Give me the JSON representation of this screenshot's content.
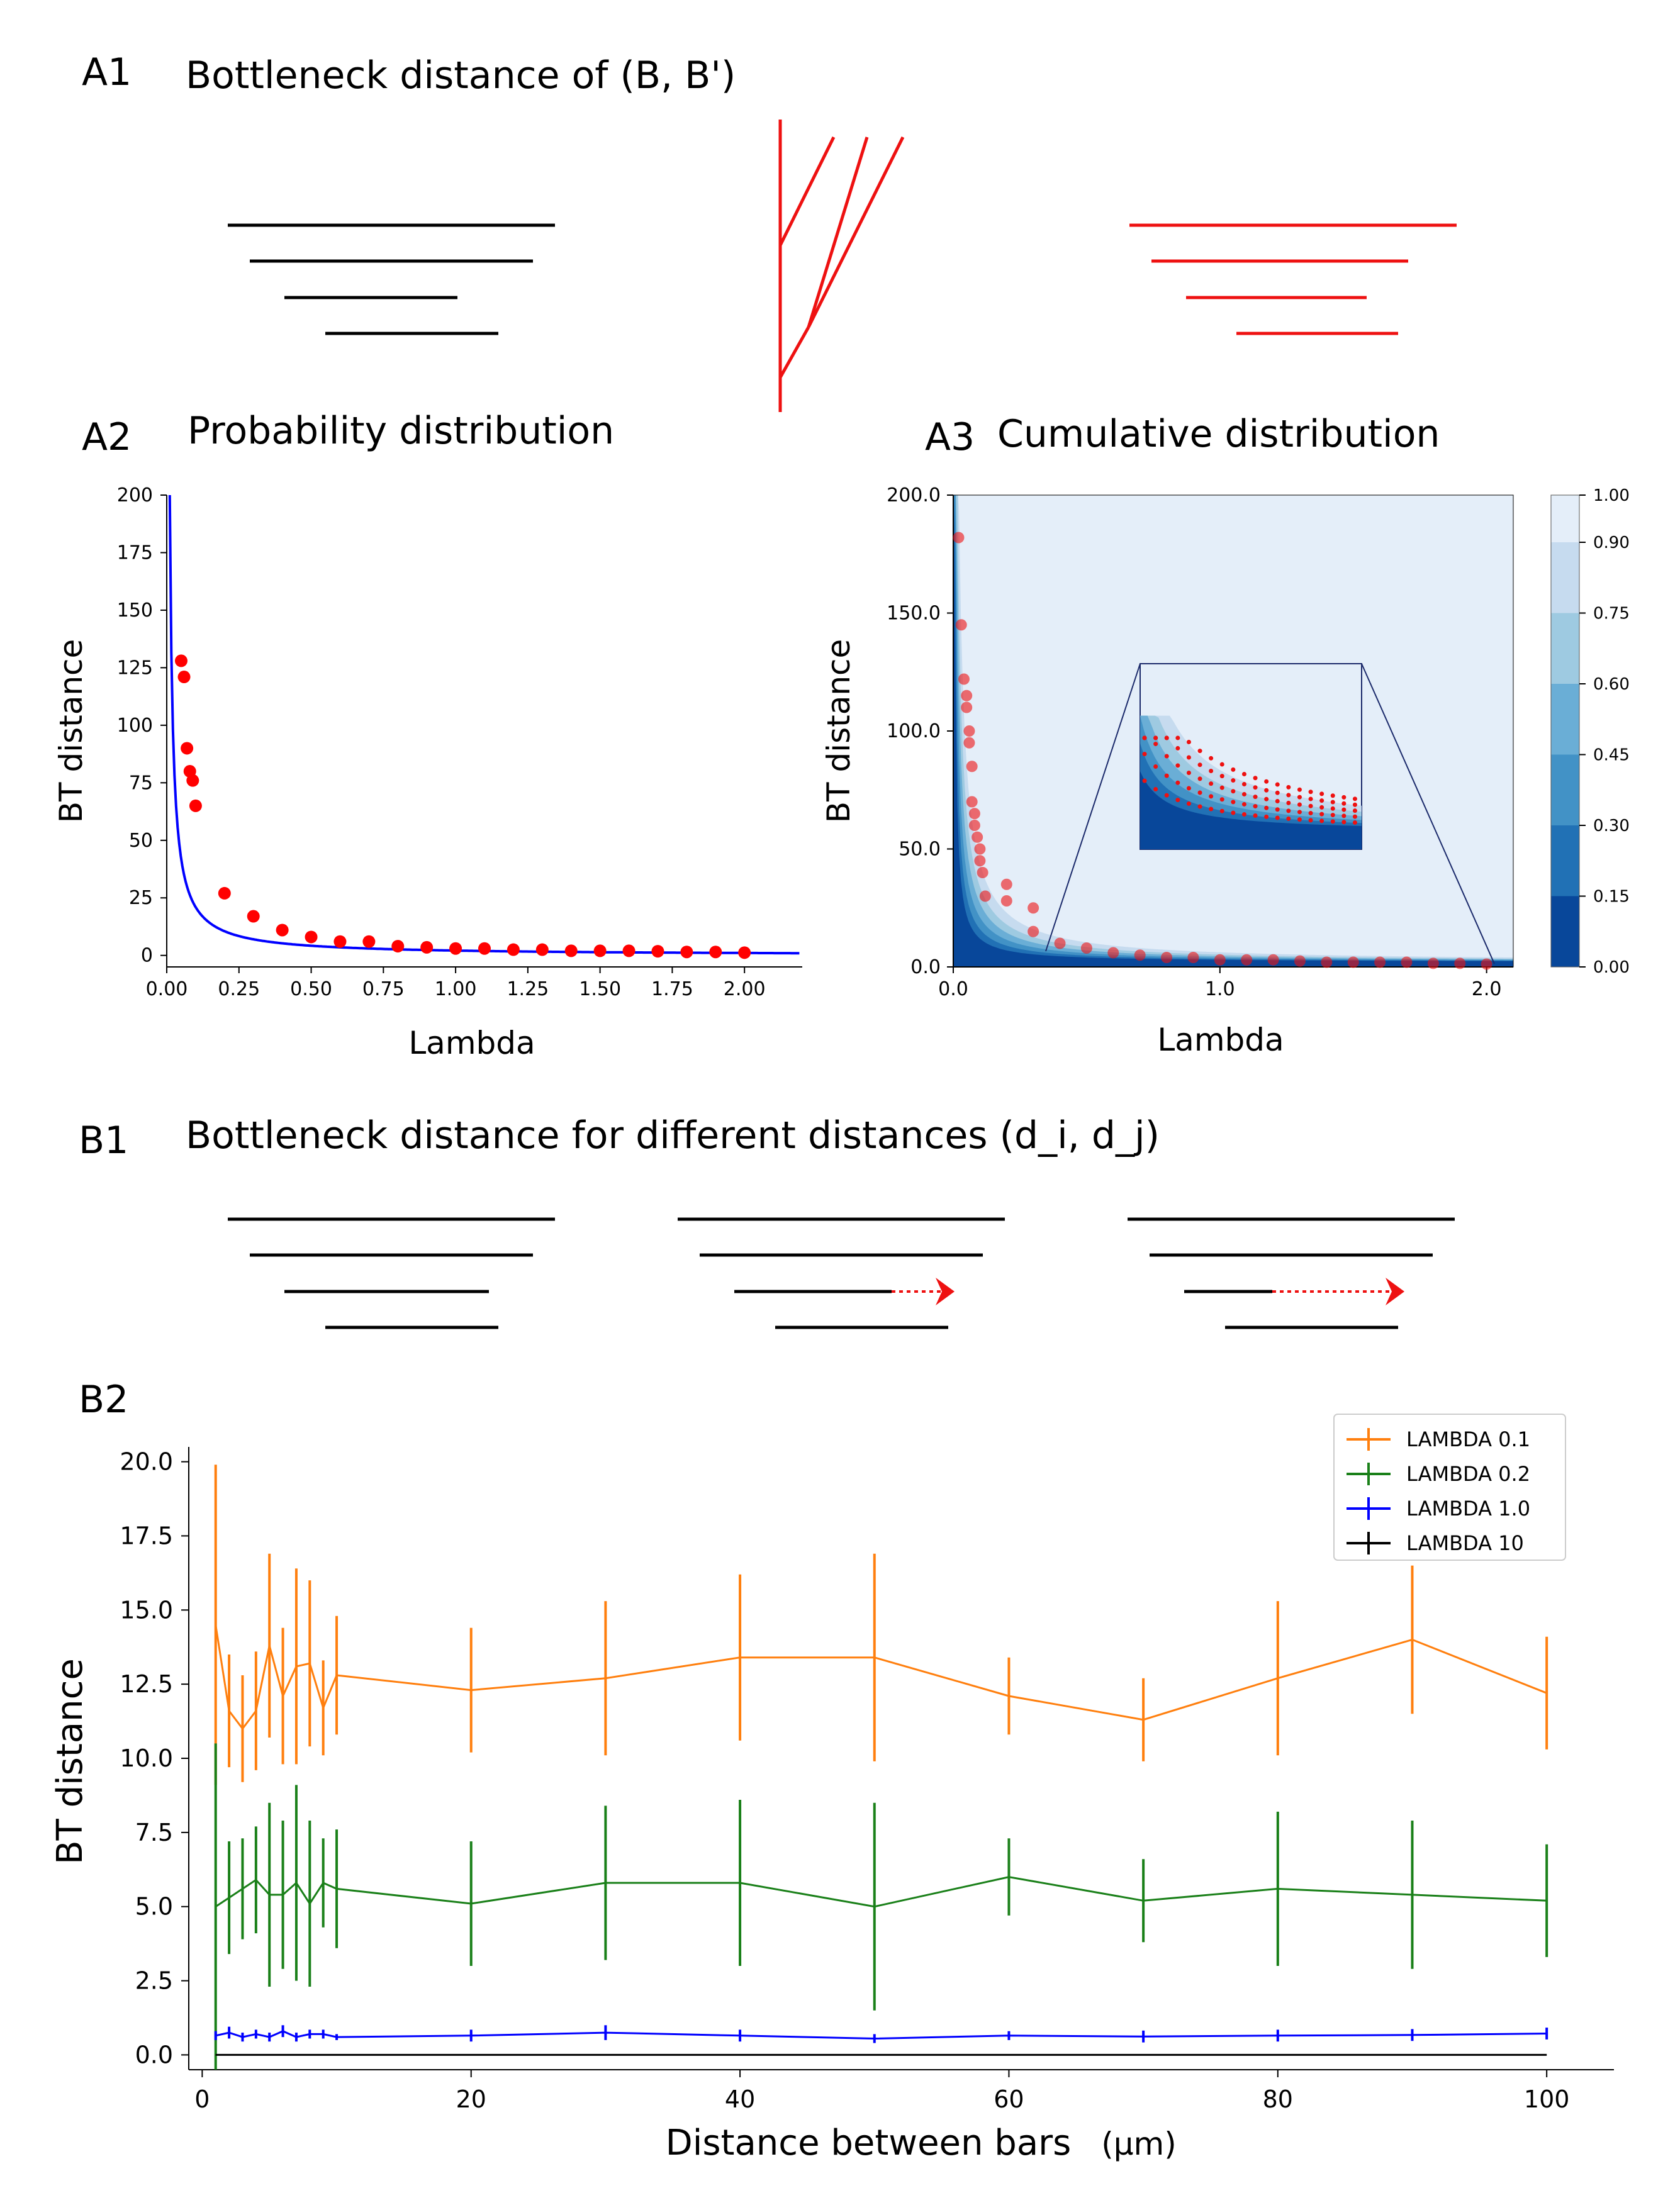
{
  "panels": {
    "A1": {
      "label": "A1",
      "title": "Bottleneck distance of (B, B')"
    },
    "A2": {
      "label": "A2",
      "title": "Probability distribution"
    },
    "A3": {
      "label": "A3",
      "title": "Cumulative distribution"
    },
    "B1": {
      "label": "B1",
      "title": "Bottleneck distance for different distances (d_i, d_j)"
    },
    "B2": {
      "label": "B2"
    }
  },
  "chart_data": [
    {
      "id": "A2",
      "type": "scatter",
      "title": "Probability distribution",
      "xlabel": "Lambda",
      "ylabel": "BT distance",
      "xlim": [
        0,
        2.2
      ],
      "ylim": [
        -5,
        200
      ],
      "xticks": [
        "0.00",
        "0.25",
        "0.50",
        "0.75",
        "1.00",
        "1.25",
        "1.50",
        "1.75",
        "2.00"
      ],
      "yticks": [
        "0",
        "25",
        "50",
        "75",
        "100",
        "125",
        "150",
        "175",
        "200"
      ],
      "points": {
        "x": [
          0.05,
          0.06,
          0.07,
          0.08,
          0.09,
          0.1,
          0.2,
          0.3,
          0.4,
          0.5,
          0.6,
          0.7,
          0.8,
          0.9,
          1.0,
          1.1,
          1.2,
          1.3,
          1.4,
          1.5,
          1.6,
          1.7,
          1.8,
          1.9,
          2.0
        ],
        "y": [
          128,
          121,
          90,
          80,
          76,
          65,
          27,
          17,
          11,
          8,
          6,
          6,
          4,
          3.5,
          3,
          3,
          2.5,
          2.5,
          2,
          2,
          2,
          1.8,
          1.5,
          1.5,
          1.2
        ]
      },
      "fit_curve": {
        "type": "hyperbolic",
        "formula": "y = 2.1 / x",
        "color": "#0000ff"
      },
      "point_color": "#ff0000"
    },
    {
      "id": "A3",
      "type": "heatmap",
      "title": "Cumulative distribution",
      "xlabel": "Lambda",
      "ylabel": "BT distance",
      "xlim": [
        0,
        2.1
      ],
      "ylim": [
        0,
        200
      ],
      "xticks": [
        "0.0",
        "1.0",
        "2.0"
      ],
      "yticks": [
        "0.0",
        "50.0",
        "100.0",
        "150.0",
        "200.0"
      ],
      "colorbar": {
        "ticks": [
          "0.00",
          "0.15",
          "0.30",
          "0.45",
          "0.60",
          "0.75",
          "0.90",
          "1.00"
        ],
        "colors": [
          "#08479a",
          "#2171b5",
          "#4292c6",
          "#6aaed6",
          "#9ecae1",
          "#c6dbef",
          "#e4eef9"
        ]
      },
      "scatter": {
        "x": [
          0.02,
          0.03,
          0.04,
          0.05,
          0.05,
          0.06,
          0.06,
          0.07,
          0.07,
          0.08,
          0.08,
          0.09,
          0.1,
          0.1,
          0.11,
          0.12,
          0.2,
          0.2,
          0.3,
          0.3,
          0.4,
          0.5,
          0.6,
          0.7,
          0.8,
          0.9,
          1.0,
          1.1,
          1.2,
          1.3,
          1.4,
          1.5,
          1.6,
          1.7,
          1.8,
          1.9,
          2.0
        ],
        "y": [
          182,
          145,
          122,
          115,
          110,
          100,
          95,
          85,
          70,
          65,
          60,
          55,
          50,
          45,
          40,
          30,
          35,
          28,
          25,
          15,
          10,
          8,
          6,
          5,
          4,
          4,
          3,
          3,
          3,
          2.5,
          2,
          2,
          2,
          2,
          1.5,
          1.5,
          1.2
        ]
      },
      "inset": "zoomed view of the decay region"
    },
    {
      "id": "B2",
      "type": "line",
      "xlabel": "Distance between bars",
      "xlabel_unit": "(μm)",
      "ylabel": "BT distance",
      "xlim": [
        -1,
        105
      ],
      "ylim": [
        -0.5,
        20.5
      ],
      "xticks": [
        "0",
        "20",
        "40",
        "60",
        "80",
        "100"
      ],
      "yticks": [
        "0.0",
        "2.5",
        "5.0",
        "7.5",
        "10.0",
        "12.5",
        "15.0",
        "17.5",
        "20.0"
      ],
      "x": [
        1,
        2,
        3,
        4,
        5,
        6,
        7,
        8,
        9,
        10,
        20,
        30,
        40,
        50,
        60,
        70,
        80,
        90,
        100
      ],
      "series": [
        {
          "name": "LAMBDA 0.1",
          "color": "#ff7f0e",
          "values": [
            14.5,
            11.6,
            11.0,
            11.6,
            13.8,
            12.1,
            13.1,
            13.2,
            11.7,
            12.8,
            12.3,
            12.7,
            13.4,
            13.4,
            12.1,
            11.3,
            12.7,
            14.0,
            12.2
          ],
          "errors": [
            5.4,
            1.9,
            1.8,
            2.0,
            3.1,
            2.3,
            3.3,
            2.8,
            1.6,
            2.0,
            2.1,
            2.6,
            2.8,
            3.5,
            1.3,
            1.4,
            2.6,
            2.5,
            1.9
          ]
        },
        {
          "name": "LAMBDA 0.2",
          "color": "#1a8019",
          "values": [
            5.0,
            5.3,
            5.6,
            5.9,
            5.4,
            5.4,
            5.8,
            5.1,
            5.8,
            5.6,
            5.1,
            5.8,
            5.8,
            5.0,
            6.0,
            5.2,
            5.6,
            5.4,
            5.2
          ],
          "errors": [
            5.5,
            1.9,
            1.7,
            1.8,
            3.1,
            2.5,
            3.3,
            2.8,
            1.5,
            2.0,
            2.1,
            2.6,
            2.8,
            3.5,
            1.3,
            1.4,
            2.6,
            2.5,
            1.9
          ]
        },
        {
          "name": "LAMBDA 1.0",
          "color": "#0000ff",
          "values": [
            0.65,
            0.75,
            0.6,
            0.7,
            0.6,
            0.8,
            0.6,
            0.7,
            0.7,
            0.6,
            0.65,
            0.75,
            0.65,
            0.55,
            0.65,
            0.62,
            0.65,
            0.67,
            0.72
          ],
          "errors": [
            0.15,
            0.2,
            0.15,
            0.15,
            0.15,
            0.2,
            0.15,
            0.15,
            0.15,
            0.1,
            0.2,
            0.25,
            0.2,
            0.15,
            0.15,
            0.2,
            0.2,
            0.2,
            0.2
          ]
        },
        {
          "name": "LAMBDA 10",
          "color": "#000000",
          "values": [
            0,
            0,
            0,
            0,
            0,
            0,
            0,
            0,
            0,
            0,
            0,
            0,
            0,
            0,
            0,
            0,
            0,
            0,
            0
          ],
          "errors": [
            0,
            0,
            0,
            0,
            0,
            0,
            0,
            0,
            0,
            0,
            0,
            0,
            0,
            0,
            0,
            0,
            0,
            0,
            0
          ]
        }
      ]
    }
  ]
}
